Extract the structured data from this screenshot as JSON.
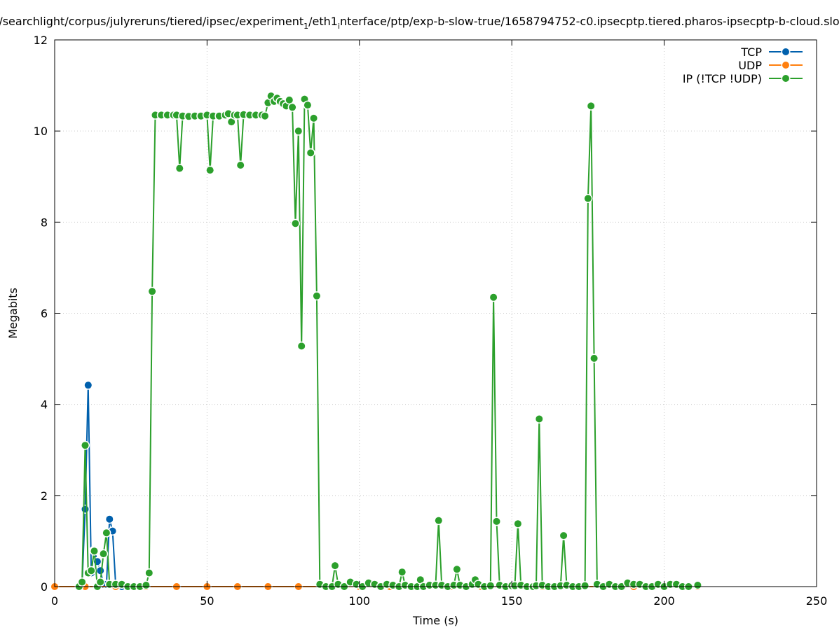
{
  "chart_data": {
    "type": "line",
    "title": "/searchlight/corpus/julyreruns/tiered/ipsec/experiment",
    "title_sub1": "1",
    "title_mid": "/eth1",
    "title_sub2": "i",
    "title_end": "nterface/ptp/exp-b-slow-true/1658794752-c0.ipsecptp.tiered.pharos-ipsecptp-b-cloud.slo",
    "xlabel": "Time (s)",
    "ylabel": "Megabits",
    "xlim": [
      0,
      250
    ],
    "ylim": [
      0,
      12
    ],
    "xticks": [
      0,
      50,
      100,
      150,
      200,
      250
    ],
    "yticks": [
      0,
      2,
      4,
      6,
      8,
      10,
      12
    ],
    "xtick_labels": [
      "0",
      "50",
      "100",
      "150",
      "200",
      "250"
    ],
    "ytick_labels": [
      "0",
      "2",
      "4",
      "6",
      "8",
      "10",
      "12"
    ],
    "grid": true,
    "legend_position": "top-right",
    "series": [
      {
        "name": "TCP",
        "color": "#0060ad",
        "points": [
          [
            8,
            0
          ],
          [
            9,
            0.05
          ],
          [
            10,
            1.7
          ],
          [
            11,
            4.42
          ],
          [
            12,
            0.3
          ],
          [
            13,
            0.8
          ],
          [
            14,
            0.55
          ],
          [
            15,
            0.35
          ],
          [
            16,
            0.05
          ],
          [
            17,
            0.05
          ],
          [
            18,
            1.48
          ],
          [
            19,
            1.22
          ],
          [
            20,
            0.05
          ],
          [
            22,
            0
          ],
          [
            24,
            0
          ],
          [
            26,
            0
          ]
        ]
      },
      {
        "name": "UDP",
        "color": "#ff7f0e",
        "points": [
          [
            0,
            0
          ],
          [
            10,
            0
          ],
          [
            20,
            0
          ],
          [
            30,
            0
          ],
          [
            40,
            0
          ],
          [
            50,
            0
          ],
          [
            60,
            0
          ],
          [
            70,
            0
          ],
          [
            80,
            0
          ],
          [
            90,
            0
          ],
          [
            100,
            0
          ],
          [
            110,
            0
          ],
          [
            120,
            0
          ],
          [
            130,
            0
          ],
          [
            140,
            0
          ],
          [
            150,
            0
          ],
          [
            160,
            0
          ],
          [
            170,
            0
          ],
          [
            180,
            0
          ],
          [
            190,
            0
          ],
          [
            200,
            0
          ],
          [
            211,
            0
          ]
        ]
      },
      {
        "name": "IP (!TCP  !UDP)",
        "color": "#2ca02c",
        "points": [
          [
            8,
            0
          ],
          [
            9,
            0.1
          ],
          [
            10,
            3.1
          ],
          [
            11,
            0.3
          ],
          [
            12,
            0.35
          ],
          [
            13,
            0.78
          ],
          [
            14,
            0
          ],
          [
            15,
            0.1
          ],
          [
            16,
            0.72
          ],
          [
            17,
            1.18
          ],
          [
            18,
            0.05
          ],
          [
            20,
            0.05
          ],
          [
            22,
            0.05
          ],
          [
            24,
            0
          ],
          [
            26,
            0
          ],
          [
            28,
            0
          ],
          [
            30,
            0.03
          ],
          [
            31,
            0.3
          ],
          [
            32,
            6.48
          ],
          [
            33,
            10.35
          ],
          [
            35,
            10.35
          ],
          [
            37,
            10.35
          ],
          [
            39,
            10.35
          ],
          [
            40,
            10.35
          ],
          [
            41,
            9.18
          ],
          [
            42,
            10.33
          ],
          [
            44,
            10.32
          ],
          [
            46,
            10.33
          ],
          [
            48,
            10.33
          ],
          [
            50,
            10.35
          ],
          [
            51,
            9.14
          ],
          [
            52,
            10.33
          ],
          [
            54,
            10.33
          ],
          [
            56,
            10.35
          ],
          [
            57,
            10.38
          ],
          [
            58,
            10.2
          ],
          [
            59,
            10.35
          ],
          [
            60,
            10.35
          ],
          [
            61,
            9.25
          ],
          [
            62,
            10.36
          ],
          [
            64,
            10.35
          ],
          [
            66,
            10.35
          ],
          [
            68,
            10.35
          ],
          [
            69,
            10.33
          ],
          [
            70,
            10.62
          ],
          [
            71,
            10.77
          ],
          [
            72,
            10.65
          ],
          [
            73,
            10.72
          ],
          [
            74,
            10.65
          ],
          [
            75,
            10.6
          ],
          [
            76,
            10.55
          ],
          [
            77,
            10.68
          ],
          [
            78,
            10.52
          ],
          [
            79,
            7.97
          ],
          [
            80,
            10.0
          ],
          [
            81,
            5.28
          ],
          [
            82,
            10.7
          ],
          [
            83,
            10.57
          ],
          [
            84,
            9.52
          ],
          [
            85,
            10.28
          ],
          [
            86,
            6.38
          ],
          [
            87,
            0.05
          ],
          [
            89,
            0
          ],
          [
            91,
            0
          ],
          [
            92,
            0.46
          ],
          [
            93,
            0.05
          ],
          [
            95,
            0
          ],
          [
            97,
            0.1
          ],
          [
            99,
            0.05
          ],
          [
            101,
            0
          ],
          [
            103,
            0.08
          ],
          [
            105,
            0.05
          ],
          [
            107,
            0
          ],
          [
            109,
            0.05
          ],
          [
            111,
            0.03
          ],
          [
            113,
            0
          ],
          [
            114,
            0.32
          ],
          [
            115,
            0.03
          ],
          [
            117,
            0
          ],
          [
            119,
            0
          ],
          [
            120,
            0.15
          ],
          [
            121,
            0
          ],
          [
            123,
            0.03
          ],
          [
            125,
            0.03
          ],
          [
            126,
            1.45
          ],
          [
            127,
            0.03
          ],
          [
            129,
            0
          ],
          [
            131,
            0.03
          ],
          [
            132,
            0.38
          ],
          [
            133,
            0.03
          ],
          [
            135,
            0
          ],
          [
            137,
            0.05
          ],
          [
            138,
            0.15
          ],
          [
            139,
            0.05
          ],
          [
            141,
            0
          ],
          [
            143,
            0.02
          ],
          [
            144,
            6.35
          ],
          [
            145,
            1.43
          ],
          [
            146,
            0.03
          ],
          [
            148,
            0
          ],
          [
            150,
            0.02
          ],
          [
            151,
            0.02
          ],
          [
            152,
            1.38
          ],
          [
            153,
            0.03
          ],
          [
            155,
            0
          ],
          [
            157,
            0
          ],
          [
            158,
            0.02
          ],
          [
            159,
            3.68
          ],
          [
            160,
            0.03
          ],
          [
            162,
            0
          ],
          [
            164,
            0
          ],
          [
            166,
            0.02
          ],
          [
            167,
            1.12
          ],
          [
            168,
            0.03
          ],
          [
            170,
            0
          ],
          [
            172,
            0
          ],
          [
            174,
            0.02
          ],
          [
            175,
            8.52
          ],
          [
            176,
            10.55
          ],
          [
            177,
            5.01
          ],
          [
            178,
            0.05
          ],
          [
            180,
            0
          ],
          [
            182,
            0.05
          ],
          [
            184,
            0
          ],
          [
            186,
            0
          ],
          [
            188,
            0.08
          ],
          [
            190,
            0.05
          ],
          [
            192,
            0.05
          ],
          [
            194,
            0
          ],
          [
            196,
            0
          ],
          [
            198,
            0.05
          ],
          [
            200,
            0
          ],
          [
            202,
            0.05
          ],
          [
            204,
            0.05
          ],
          [
            206,
            0
          ],
          [
            208,
            0
          ],
          [
            211,
            0.03
          ]
        ]
      }
    ]
  }
}
